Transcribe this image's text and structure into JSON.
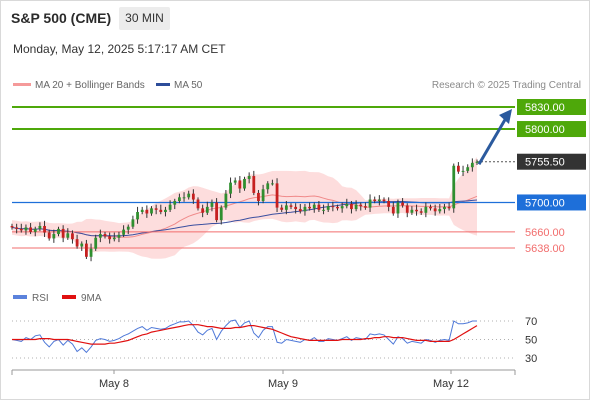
{
  "header": {
    "title": "S&P 500 (CME)",
    "timeframe": "30 MIN",
    "datetime": "Monday, May 12, 2025 5:17:17 AM CET"
  },
  "legend": {
    "ma20_label": "MA 20 + Bollinger Bands",
    "ma50_label": "MA 50",
    "credit": "Research © 2025 Trading Central"
  },
  "rsi_legend": {
    "rsi_label": "RSI",
    "ma_label": "9MA"
  },
  "colors": {
    "green_level": "#4ea80a",
    "blue_level": "#1e6fd9",
    "red_level": "#f26d6d",
    "current_price_bg": "#333333",
    "bollinger_fill": "#fcd5d5",
    "ma20_line": "#f08a8a",
    "ma50_line": "#3a4fa0",
    "arrow": "#2b5a9e",
    "rsi_line": "#4f79d8",
    "rsi_ma_line": "#e01010",
    "candle_up": "#2f8f2f",
    "candle_down": "#c62020"
  },
  "chart_data": [
    {
      "type": "candlestick",
      "title": "S&P 500 (CME) 30 MIN",
      "x_tick_labels": [
        "May 8",
        "May 9",
        "May 12"
      ],
      "price_axis_range": [
        5595,
        5845
      ],
      "levels": [
        {
          "value": 5830.0,
          "label": "5830.00",
          "kind": "resistance"
        },
        {
          "value": 5800.0,
          "label": "5800.00",
          "kind": "resistance"
        },
        {
          "value": 5700.0,
          "label": "5700.00",
          "kind": "pivot"
        },
        {
          "value": 5660.0,
          "label": "5660.00",
          "kind": "support"
        },
        {
          "value": 5638.0,
          "label": "5638.00",
          "kind": "support"
        }
      ],
      "current_price": {
        "value": 5755.5,
        "label": "5755.50"
      },
      "projection": {
        "from": 5752,
        "to": 5830,
        "direction": "up"
      },
      "closes": [
        5666,
        5664,
        5662,
        5666,
        5660,
        5664,
        5668,
        5659,
        5651,
        5657,
        5664,
        5652,
        5658,
        5650,
        5640,
        5644,
        5626,
        5637,
        5652,
        5657,
        5654,
        5650,
        5652,
        5656,
        5663,
        5667,
        5677,
        5687,
        5690,
        5685,
        5692,
        5690,
        5687,
        5690,
        5697,
        5702,
        5707,
        5707,
        5712,
        5704,
        5692,
        5686,
        5694,
        5700,
        5676,
        5693,
        5712,
        5727,
        5730,
        5719,
        5732,
        5736,
        5713,
        5702,
        5718,
        5726,
        5726,
        5693,
        5690,
        5696,
        5694,
        5691,
        5688,
        5694,
        5692,
        5697,
        5690,
        5690,
        5695,
        5694,
        5692,
        5695,
        5698,
        5691,
        5697,
        5695,
        5693,
        5704,
        5702,
        5704,
        5702,
        5694,
        5685,
        5700,
        5696,
        5686,
        5690,
        5688,
        5686,
        5694,
        5692,
        5688,
        5691,
        5694,
        5692,
        5750,
        5742,
        5743,
        5748,
        5754,
        5755.5
      ]
    },
    {
      "type": "line",
      "title": "RSI",
      "series": [
        {
          "name": "RSI",
          "values": [
            50,
            49,
            48,
            52,
            50,
            54,
            55,
            47,
            42,
            48,
            50,
            44,
            49,
            45,
            37,
            41,
            36,
            42,
            49,
            51,
            50,
            48,
            49,
            51,
            54,
            56,
            59,
            62,
            64,
            60,
            63,
            62,
            61,
            62,
            65,
            67,
            69,
            69,
            70,
            65,
            58,
            55,
            60,
            62,
            50,
            59,
            65,
            70,
            71,
            63,
            68,
            70,
            57,
            52,
            60,
            64,
            64,
            47,
            46,
            50,
            49,
            48,
            47,
            50,
            49,
            52,
            48,
            48,
            51,
            50,
            49,
            51,
            53,
            49,
            52,
            51,
            50,
            56,
            55,
            56,
            55,
            50,
            45,
            53,
            51,
            46,
            48,
            47,
            46,
            50,
            49,
            47,
            49,
            50,
            49,
            70,
            67,
            67,
            68,
            70,
            70
          ]
        },
        {
          "name": "9MA",
          "values": [
            50,
            50,
            50,
            50,
            50,
            50,
            51,
            51,
            51,
            50,
            50,
            50,
            50,
            49,
            48,
            47,
            46,
            45,
            45,
            45,
            45,
            46,
            46,
            47,
            48,
            49,
            51,
            53,
            55,
            56,
            58,
            59,
            60,
            61,
            62,
            63,
            64,
            65,
            66,
            66,
            66,
            65,
            64,
            64,
            63,
            62,
            62,
            62,
            63,
            63,
            64,
            65,
            65,
            64,
            63,
            62,
            61,
            59,
            57,
            55,
            53,
            52,
            51,
            50,
            49,
            49,
            49,
            49,
            49,
            49,
            49,
            50,
            50,
            50,
            50,
            50,
            51,
            51,
            52,
            52,
            53,
            53,
            52,
            52,
            52,
            51,
            50,
            49,
            49,
            49,
            48,
            48,
            48,
            48,
            48,
            50,
            53,
            56,
            59,
            62,
            65
          ]
        }
      ],
      "ylim": [
        20,
        80
      ],
      "y_tick_labels": [
        "70",
        "50",
        "30"
      ]
    }
  ]
}
